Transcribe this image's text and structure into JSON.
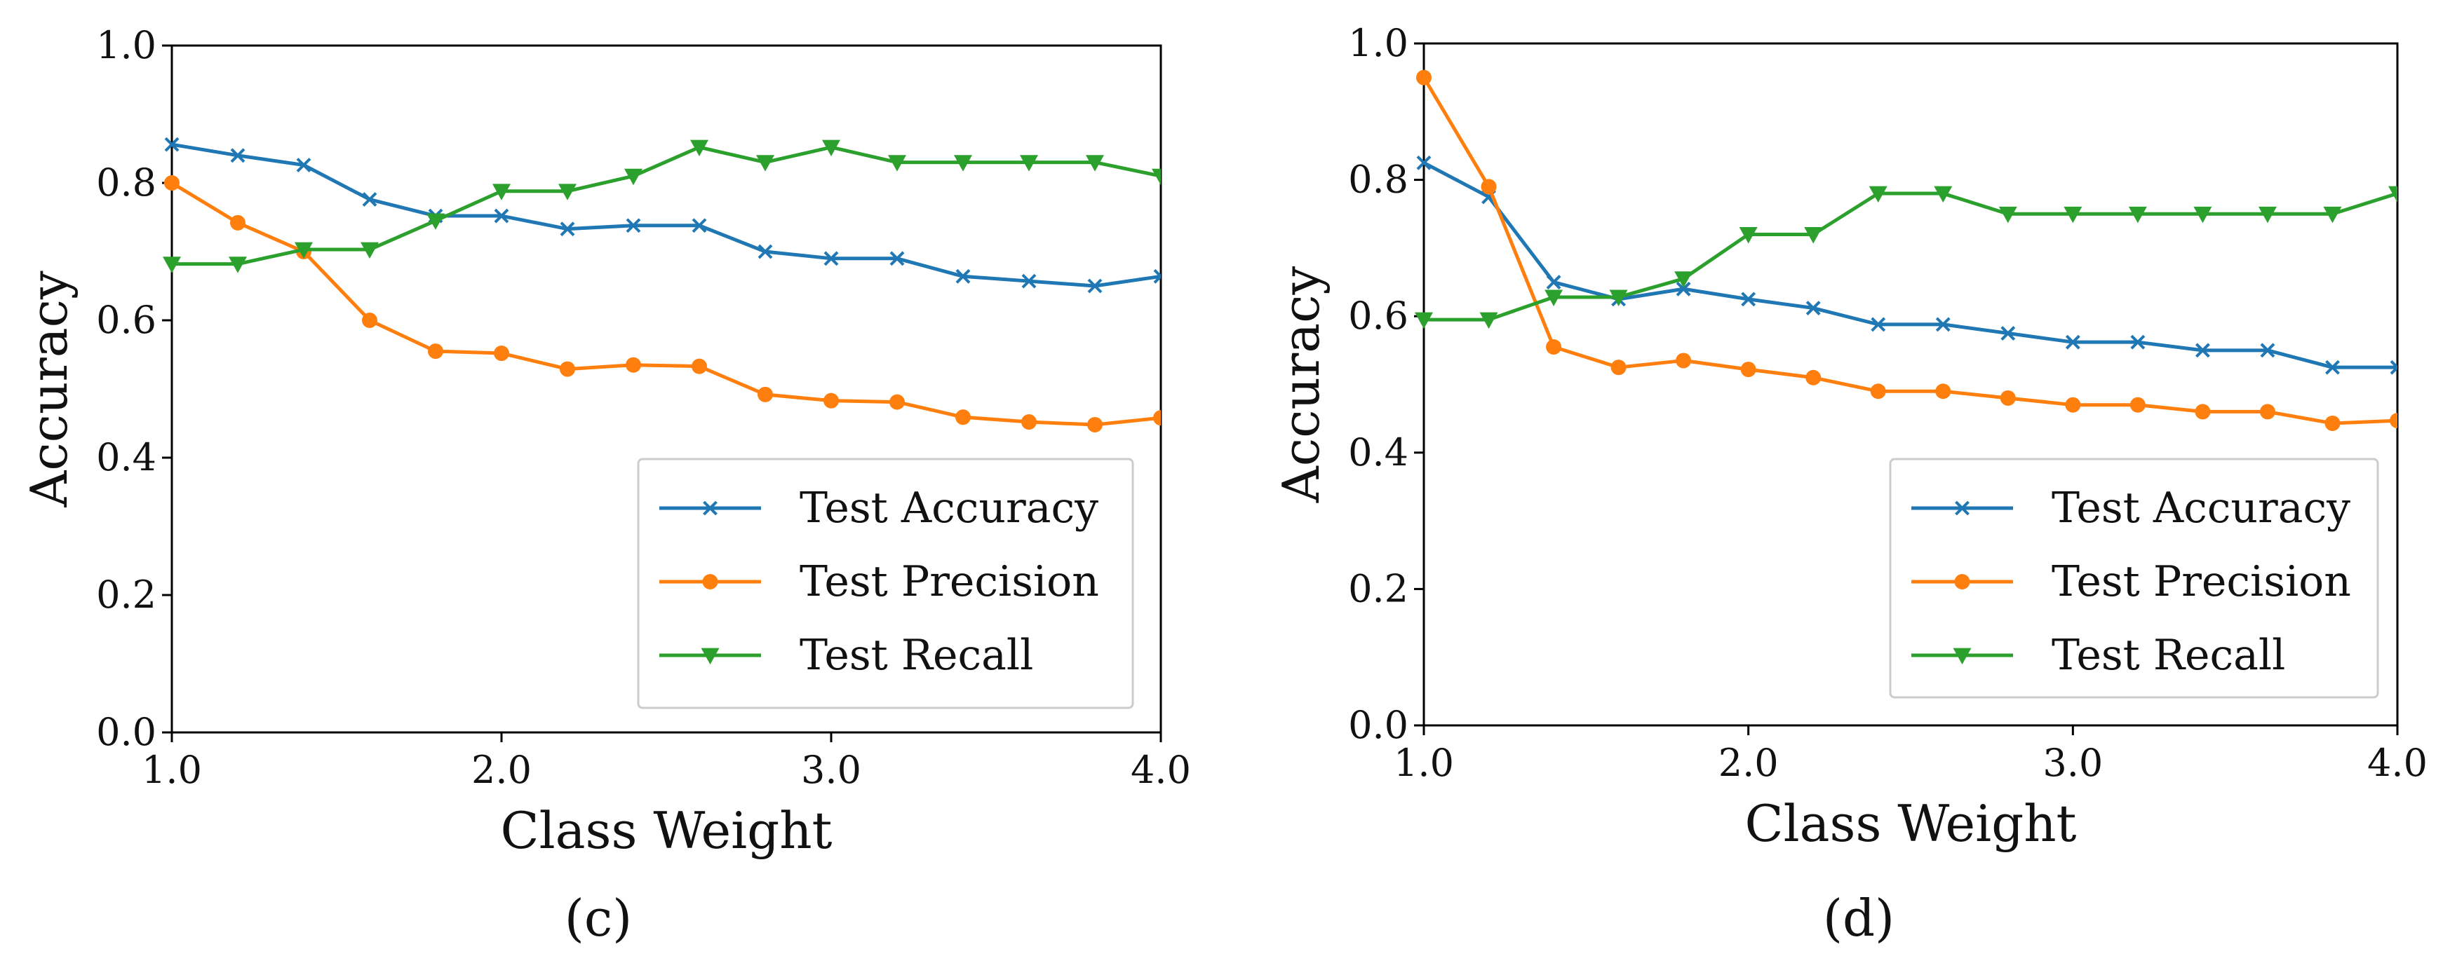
{
  "chart_data": [
    {
      "type": "line",
      "panel": "c",
      "panel_label": "(c)",
      "title": "",
      "xlabel": "Class Weight",
      "ylabel": "Accuracy",
      "xlim": [
        1.0,
        4.0
      ],
      "ylim": [
        0.0,
        1.0
      ],
      "xticks": [
        "1.0",
        "2.0",
        "3.0",
        "4.0"
      ],
      "yticks": [
        "0.0",
        "0.2",
        "0.4",
        "0.6",
        "0.8",
        "1.0"
      ],
      "legend_position": "lower-right",
      "x": [
        1.0,
        1.2,
        1.4,
        1.6,
        1.8,
        2.0,
        2.2,
        2.4,
        2.6,
        2.8,
        3.0,
        3.2,
        3.4,
        3.6,
        3.8,
        4.0
      ],
      "series": [
        {
          "name": "Test Accuracy",
          "color": "#1f77b4",
          "marker": "x",
          "values": [
            0.856,
            0.84,
            0.826,
            0.776,
            0.752,
            0.752,
            0.733,
            0.738,
            0.738,
            0.7,
            0.69,
            0.69,
            0.664,
            0.657,
            0.65,
            0.664
          ]
        },
        {
          "name": "Test Precision",
          "color": "#ff7f0e",
          "marker": "o",
          "values": [
            0.8,
            0.742,
            0.7,
            0.6,
            0.555,
            0.552,
            0.529,
            0.535,
            0.533,
            0.492,
            0.483,
            0.481,
            0.459,
            0.452,
            0.448,
            0.458
          ]
        },
        {
          "name": "Test Recall",
          "color": "#2ca02c",
          "marker": "v",
          "values": [
            0.682,
            0.682,
            0.703,
            0.703,
            0.745,
            0.788,
            0.788,
            0.81,
            0.852,
            0.83,
            0.852,
            0.83,
            0.83,
            0.83,
            0.83,
            0.81
          ]
        }
      ]
    },
    {
      "type": "line",
      "panel": "d",
      "panel_label": "(d)",
      "title": "",
      "xlabel": "Class Weight",
      "ylabel": "Accuracy",
      "xlim": [
        1.0,
        4.0
      ],
      "ylim": [
        0.0,
        1.0
      ],
      "xticks": [
        "1.0",
        "2.0",
        "3.0",
        "4.0"
      ],
      "yticks": [
        "0.0",
        "0.2",
        "0.4",
        "0.6",
        "0.8",
        "1.0"
      ],
      "legend_position": "lower-right",
      "x": [
        1.0,
        1.2,
        1.4,
        1.6,
        1.8,
        2.0,
        2.2,
        2.4,
        2.6,
        2.8,
        3.0,
        3.2,
        3.4,
        3.6,
        3.8,
        4.0
      ],
      "series": [
        {
          "name": "Test Accuracy",
          "color": "#1f77b4",
          "marker": "x",
          "values": [
            0.825,
            0.775,
            0.65,
            0.625,
            0.64,
            0.625,
            0.612,
            0.588,
            0.588,
            0.575,
            0.562,
            0.562,
            0.55,
            0.55,
            0.525,
            0.525
          ]
        },
        {
          "name": "Test Precision",
          "color": "#ff7f0e",
          "marker": "o",
          "values": [
            0.95,
            0.79,
            0.555,
            0.525,
            0.535,
            0.522,
            0.51,
            0.49,
            0.49,
            0.48,
            0.47,
            0.47,
            0.46,
            0.46,
            0.443,
            0.447
          ]
        },
        {
          "name": "Test Recall",
          "color": "#2ca02c",
          "marker": "v",
          "values": [
            0.595,
            0.595,
            0.628,
            0.628,
            0.655,
            0.72,
            0.72,
            0.78,
            0.78,
            0.75,
            0.75,
            0.75,
            0.75,
            0.75,
            0.75,
            0.78
          ]
        }
      ]
    }
  ]
}
